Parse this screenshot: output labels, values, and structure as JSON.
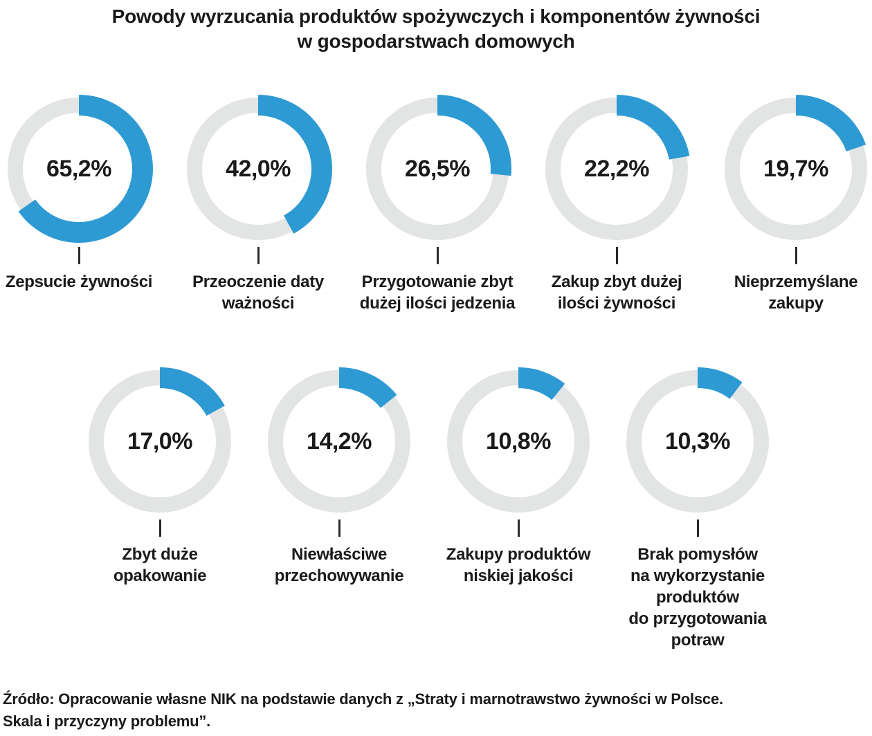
{
  "title": {
    "line1": "Powody wyrzucania produktów spożywczych i komponentów żywności",
    "line2": "w gospodarstwach domowych"
  },
  "colors": {
    "accent": "#2e9ad3",
    "track": "#e3e4e4",
    "text": "#1a1a1a"
  },
  "chart_data": {
    "type": "pie",
    "variant": "donut-multiples",
    "title": "Powody wyrzucania produktów spożywczych i komponentów żywności w gospodarstwach domowych",
    "unit": "%",
    "value_range": [
      0,
      100
    ],
    "rows": [
      [
        {
          "label": "Zepsucie żywności",
          "label_lines": [
            "Zepsucie żywności"
          ],
          "value": 65.2,
          "display": "65,2%"
        },
        {
          "label": "Przeoczenie daty ważności",
          "label_lines": [
            "Przeoczenie daty",
            "ważności"
          ],
          "value": 42.0,
          "display": "42,0%"
        },
        {
          "label": "Przygotowanie zbyt dużej ilości jedzenia",
          "label_lines": [
            "Przygotowanie zbyt",
            "dużej ilości jedzenia"
          ],
          "value": 26.5,
          "display": "26,5%"
        },
        {
          "label": "Zakup zbyt dużej ilości żywności",
          "label_lines": [
            "Zakup zbyt dużej",
            "ilości żywności"
          ],
          "value": 22.2,
          "display": "22,2%"
        },
        {
          "label": "Nieprzemyślane zakupy",
          "label_lines": [
            "Nieprzemyślane",
            "zakupy"
          ],
          "value": 19.7,
          "display": "19,7%"
        }
      ],
      [
        {
          "label": "Zbyt duże opakowanie",
          "label_lines": [
            "Zbyt duże",
            "opakowanie"
          ],
          "value": 17.0,
          "display": "17,0%"
        },
        {
          "label": "Niewłaściwe przechowywanie",
          "label_lines": [
            "Niewłaściwe",
            "przechowywanie"
          ],
          "value": 14.2,
          "display": "14,2%"
        },
        {
          "label": "Zakupy produktów niskiej jakości",
          "label_lines": [
            "Zakupy produktów",
            "niskiej jakości"
          ],
          "value": 10.8,
          "display": "10,8%"
        },
        {
          "label": "Brak pomysłów na wykorzystanie produktów do przygotowania potraw",
          "label_lines": [
            "Brak pomysłów",
            "na wykorzystanie",
            "produktów",
            "do przygotowania",
            "potraw"
          ],
          "value": 10.3,
          "display": "10,3%"
        }
      ]
    ]
  },
  "source": {
    "line1": "Źródło: Opracowanie własne NIK na podstawie danych z „Straty i marnotrawstwo żywności w Polsce.",
    "line2": "Skala i przyczyny problemu”."
  }
}
